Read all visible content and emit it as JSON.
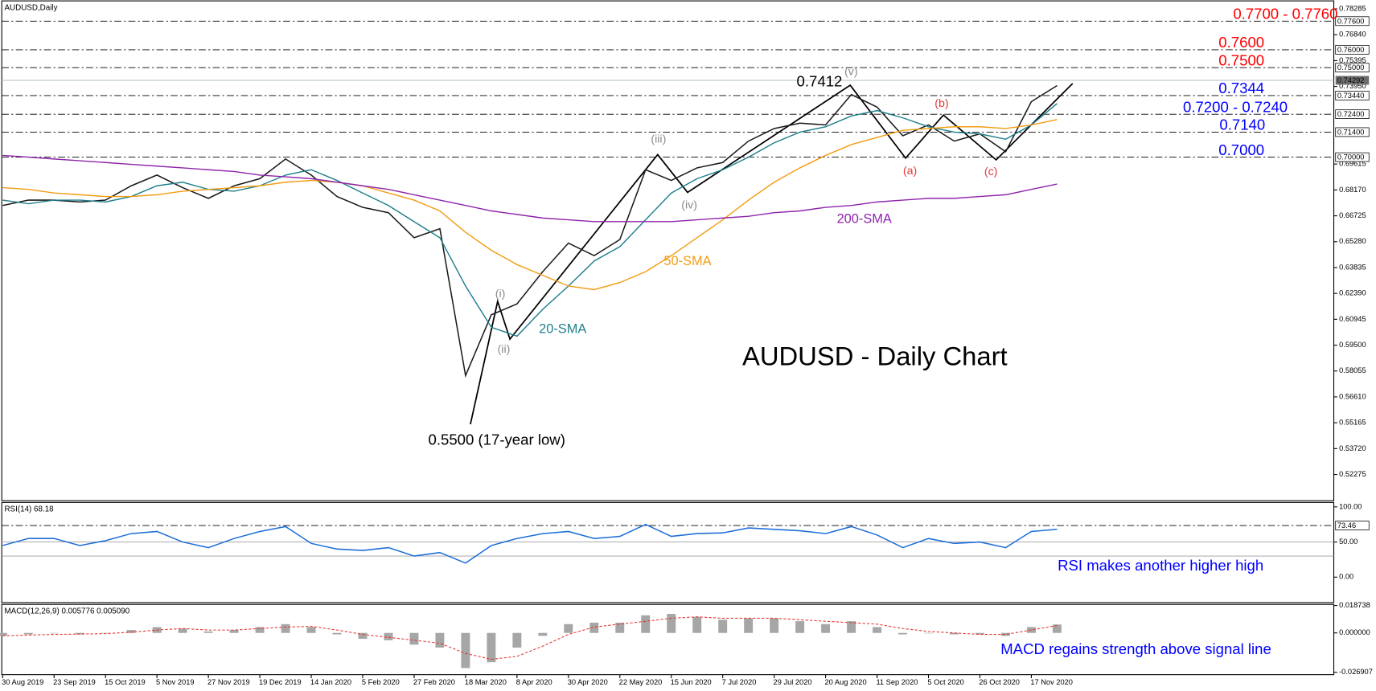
{
  "chart_data": [
    {
      "type": "line",
      "title": "AUDUSD - Daily Chart",
      "label": "AUDUSD,Daily",
      "categories": [
        "30 Aug 2019",
        null,
        "23 Sep 2019",
        null,
        "15 Oct 2019",
        null,
        "5 Nov 2019",
        null,
        "27 Nov 2019",
        null,
        "19 Dec 2019",
        null,
        "14 Jan 2020",
        null,
        "5 Feb 2020",
        null,
        "27 Feb 2020",
        null,
        "18 Mar 2020",
        null,
        "8 Apr 2020",
        null,
        "30 Apr 2020",
        null,
        "22 May 2020",
        null,
        "15 Jun 2020",
        null,
        "7 Jul 2020",
        null,
        "29 Jul 2020",
        null,
        "20 Aug 2020",
        null,
        "11 Sep 2020",
        null,
        "5 Oct 2020",
        null,
        "26 Oct 2020",
        null,
        "17 Nov 2020",
        null
      ],
      "ylim": [
        0.5081,
        0.7873
      ],
      "yticks": [
        0.78285,
        {
          "value": 0.7684,
          "label": "0.76840"
        },
        0.75395,
        {
          "value": 0.7395,
          "label": "0.73950"
        },
        0.69615,
        {
          "value": 0.6817,
          "label": "0.68170"
        },
        0.66725,
        {
          "value": 0.6528,
          "label": "0.65280"
        },
        0.63835,
        {
          "value": 0.6239,
          "label": "0.62390"
        },
        0.60945,
        {
          "value": 0.595,
          "label": "0.59500"
        },
        0.58055,
        {
          "value": 0.5661,
          "label": "0.56610"
        },
        0.55165,
        {
          "value": 0.5372,
          "label": "0.53720"
        },
        0.52275
      ],
      "levels": [
        {
          "value": 0.776,
          "label": "0.77600"
        },
        {
          "value": 0.76,
          "label": "0.76000"
        },
        {
          "value": 0.75,
          "label": "0.75000"
        },
        {
          "value": 0.7344,
          "label": "0.73440"
        },
        {
          "value": 0.724,
          "label": "0.72400"
        },
        {
          "value": 0.714,
          "label": "0.71400"
        },
        {
          "value": 0.7,
          "label": "0.70000"
        }
      ],
      "current_price": {
        "value": 0.74292,
        "label": "0.74292"
      },
      "level_annotations": [
        {
          "text": "0.7700 - 0.7760",
          "color": "#ff0000"
        },
        {
          "text": "0.7600",
          "color": "#ff0000"
        },
        {
          "text": "0.7500",
          "color": "#ff0000"
        },
        {
          "text": "0.7344",
          "color": "#0000ff"
        },
        {
          "text": "0.7200 - 0.7240",
          "color": "#0000ff"
        },
        {
          "text": "0.7140",
          "color": "#0000ff"
        },
        {
          "text": "0.7000",
          "color": "#0000ff"
        }
      ],
      "wave_labels": [
        "(i)",
        "(ii)",
        "(iii)",
        "(iv)",
        "(v)",
        "(a)",
        "(b)",
        "(c)"
      ],
      "price_notes": [
        "0.7412",
        "0.5500 (17-year low)"
      ],
      "series": [
        {
          "color": "#1a1a1a",
          "values": [
            0.673,
            0.676,
            0.676,
            0.675,
            0.676,
            0.684,
            0.69,
            0.683,
            0.677,
            0.684,
            0.688,
            0.699,
            0.69,
            0.678,
            0.672,
            0.669,
            0.655,
            0.66,
            0.578,
            0.612,
            0.618,
            0.636,
            0.652,
            0.645,
            0.654,
            0.693,
            0.687,
            0.694,
            0.697,
            0.709,
            0.716,
            0.719,
            0.718,
            0.735,
            0.728,
            0.712,
            0.718,
            0.709,
            0.713,
            0.703,
            0.731,
            0.74
          ]
        },
        {
          "name": "20-SMA",
          "color": "#1f7f8c",
          "values": [
            0.676,
            0.674,
            0.676,
            0.676,
            0.675,
            0.678,
            0.684,
            0.686,
            0.682,
            0.681,
            0.684,
            0.69,
            0.693,
            0.687,
            0.68,
            0.673,
            0.664,
            0.655,
            0.628,
            0.605,
            0.6,
            0.615,
            0.628,
            0.642,
            0.65,
            0.665,
            0.68,
            0.688,
            0.693,
            0.7,
            0.708,
            0.714,
            0.717,
            0.723,
            0.726,
            0.722,
            0.717,
            0.714,
            0.713,
            0.71,
            0.718,
            0.73
          ]
        },
        {
          "name": "50-SMA",
          "color": "#f39c12",
          "values": [
            0.683,
            0.682,
            0.68,
            0.679,
            0.678,
            0.678,
            0.679,
            0.681,
            0.682,
            0.683,
            0.684,
            0.686,
            0.687,
            0.686,
            0.684,
            0.68,
            0.676,
            0.67,
            0.658,
            0.648,
            0.64,
            0.634,
            0.628,
            0.626,
            0.63,
            0.636,
            0.645,
            0.655,
            0.665,
            0.676,
            0.686,
            0.694,
            0.701,
            0.707,
            0.711,
            0.715,
            0.716,
            0.717,
            0.717,
            0.716,
            0.718,
            0.721
          ]
        },
        {
          "name": "200-SMA",
          "color": "#8e24aa",
          "values": [
            0.701,
            0.7,
            0.699,
            0.698,
            0.697,
            0.696,
            0.695,
            0.694,
            0.693,
            0.692,
            0.69,
            0.689,
            0.688,
            0.686,
            0.684,
            0.682,
            0.679,
            0.676,
            0.673,
            0.67,
            0.668,
            0.666,
            0.665,
            0.664,
            0.664,
            0.664,
            0.664,
            0.665,
            0.666,
            0.667,
            0.669,
            0.67,
            0.672,
            0.673,
            0.675,
            0.676,
            0.677,
            0.677,
            0.678,
            0.679,
            0.682,
            0.685
          ]
        }
      ]
    },
    {
      "type": "line",
      "label": "RSI(14) 68.18",
      "annotation": "RSI makes another higher high",
      "ylim": [
        -36.25,
        106.25
      ],
      "yticks": [
        {
          "value": 100,
          "label": "100.00"
        },
        {
          "value": 50,
          "label": "50.00"
        },
        {
          "value": 0,
          "label": "0.00"
        }
      ],
      "levels": [
        {
          "value": 73.46,
          "label": "73.46"
        }
      ],
      "hlines": [
        50,
        30
      ],
      "series": [
        {
          "color": "#1e6fd9",
          "values": [
            45,
            55,
            55,
            45,
            52,
            62,
            65,
            50,
            42,
            55,
            65,
            72,
            48,
            40,
            38,
            42,
            30,
            35,
            20,
            45,
            55,
            62,
            65,
            55,
            58,
            75,
            58,
            62,
            63,
            70,
            68,
            66,
            62,
            72,
            60,
            42,
            55,
            48,
            50,
            42,
            65,
            68.18
          ]
        }
      ]
    },
    {
      "type": "bar",
      "label": "MACD(12,26,9) 0.005776 0.005090",
      "annotation": "MACD regains strength above signal line",
      "ylim": [
        -0.0285,
        0.0195
      ],
      "yticks": [
        0.018738,
        {
          "value": 0,
          "label": "0.000000"
        },
        -0.026907
      ],
      "series": [
        {
          "color": "#a6a6a6",
          "values": [
            -0.002,
            -0.001,
            0,
            -0.001,
            0,
            0.002,
            0.004,
            0.003,
            0.001,
            0.002,
            0.004,
            0.006,
            0.004,
            -0.001,
            -0.004,
            -0.005,
            -0.008,
            -0.01,
            -0.024,
            -0.02,
            -0.01,
            -0.002,
            0.006,
            0.007,
            0.007,
            0.012,
            0.013,
            0.011,
            0.009,
            0.01,
            0.01,
            0.008,
            0.006,
            0.008,
            0.004,
            -0.001,
            0,
            -0.001,
            -0.001,
            -0.002,
            0.004,
            0.005776
          ]
        },
        {
          "color": "#e53935",
          "dash": true,
          "values": [
            -0.002,
            -0.0015,
            -0.001,
            -0.0008,
            -0.0005,
            0.0005,
            0.002,
            0.003,
            0.002,
            0.002,
            0.003,
            0.004,
            0.0045,
            0.002,
            -0.001,
            -0.003,
            -0.005,
            -0.007,
            -0.014,
            -0.018,
            -0.016,
            -0.009,
            -0.001,
            0.004,
            0.006,
            0.008,
            0.01,
            0.011,
            0.01,
            0.01,
            0.01,
            0.009,
            0.008,
            0.007,
            0.006,
            0.003,
            0.001,
            0,
            -0.001,
            -0.001,
            0.002,
            0.00509
          ]
        }
      ]
    }
  ]
}
